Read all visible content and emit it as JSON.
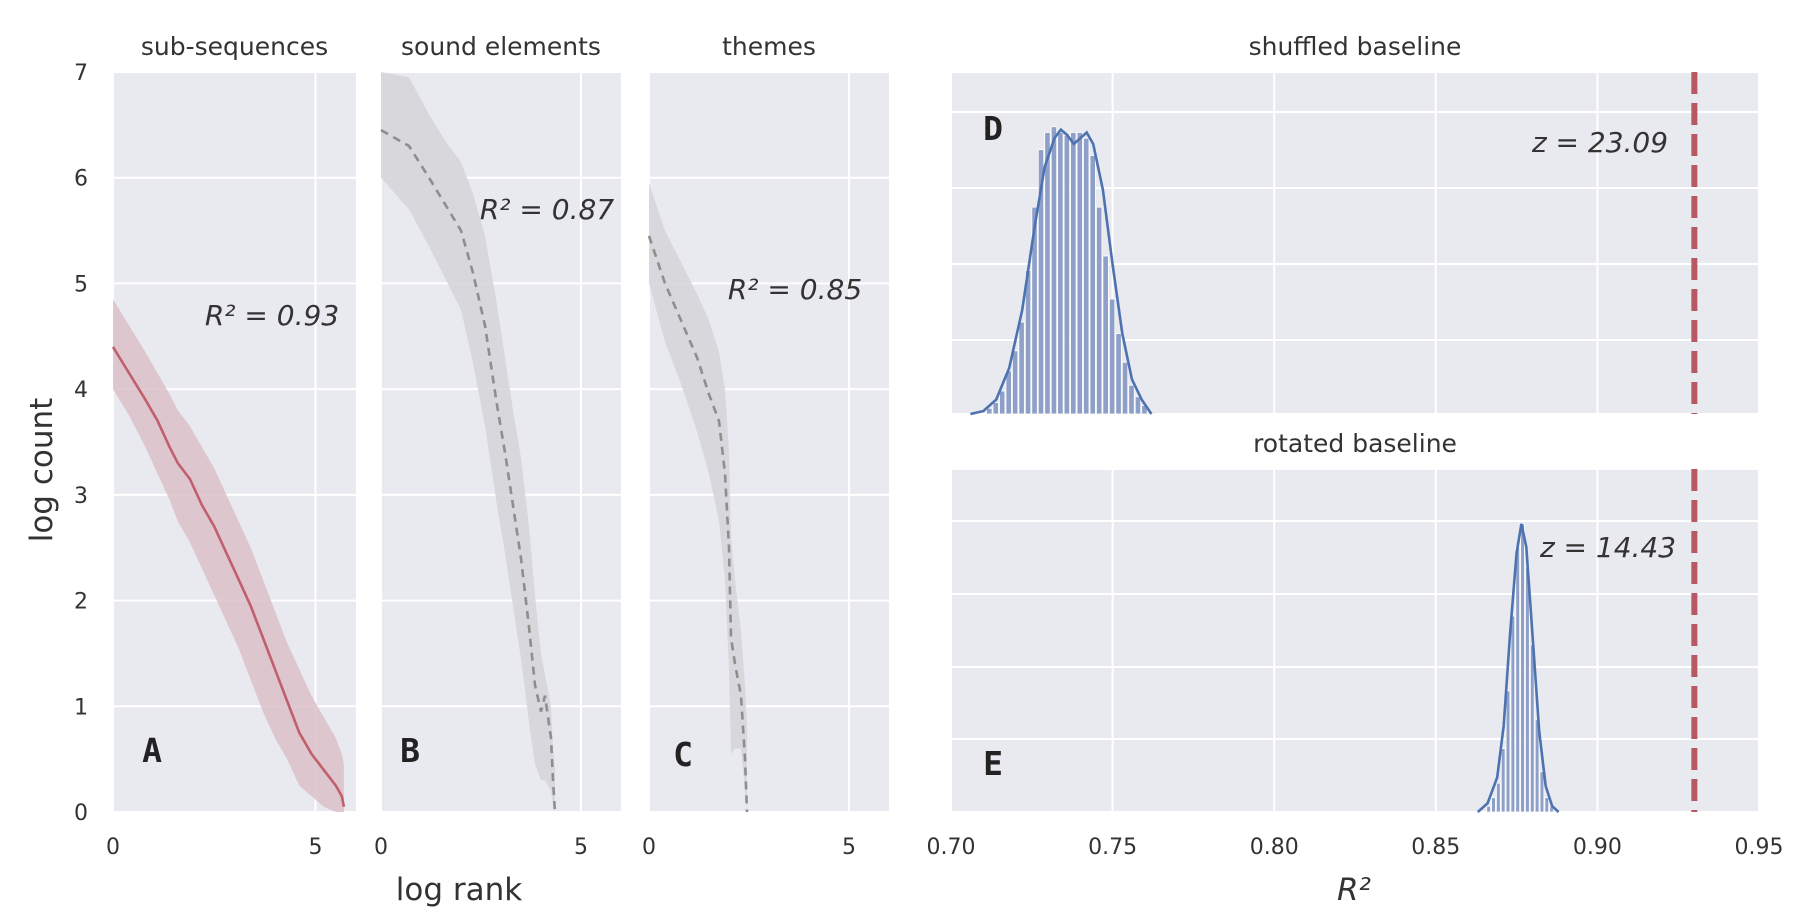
{
  "figure": {
    "ylabel": "log count",
    "xlabel_left": "log rank",
    "xlabel_right": "R²",
    "colors": {
      "background": "#e9e9f0",
      "grid": "#ffffff",
      "red": "#c0606c",
      "red_band": "#dcc0c8",
      "grey_line": "#8e8e8e",
      "grey_band": "#d3d3d8",
      "blue": "#4c72b0",
      "blue_bar": "#8fa0c8",
      "dashed_red": "#b85862"
    }
  },
  "chart_data": [
    {
      "id": "A",
      "type": "line",
      "title": "sub-sequences",
      "letter": "A",
      "annotation": "R² = 0.93",
      "r2": 0.93,
      "xlim": [
        0,
        6
      ],
      "ylim": [
        0,
        7
      ],
      "xticks": [
        "0",
        "5"
      ],
      "xtick_values": [
        0,
        5
      ],
      "yticks": [
        "0",
        "1",
        "2",
        "3",
        "4",
        "5",
        "6",
        "7"
      ],
      "x": [
        0,
        0.4,
        0.8,
        1.1,
        1.4,
        1.6,
        1.9,
        2.2,
        2.5,
        2.8,
        3.1,
        3.4,
        3.7,
        4.0,
        4.3,
        4.6,
        4.9,
        5.2,
        5.5,
        5.65,
        5.7
      ],
      "y": [
        4.4,
        4.15,
        3.9,
        3.7,
        3.45,
        3.3,
        3.15,
        2.9,
        2.7,
        2.45,
        2.2,
        1.95,
        1.65,
        1.35,
        1.05,
        0.75,
        0.55,
        0.4,
        0.25,
        0.15,
        0.05
      ],
      "band_lower": [
        4.0,
        3.75,
        3.45,
        3.2,
        2.95,
        2.75,
        2.55,
        2.3,
        2.05,
        1.8,
        1.55,
        1.25,
        0.95,
        0.7,
        0.5,
        0.25,
        0.15,
        0.05,
        0.0,
        0.0,
        0.0
      ],
      "band_upper": [
        4.85,
        4.6,
        4.35,
        4.15,
        3.95,
        3.8,
        3.65,
        3.45,
        3.25,
        3.0,
        2.75,
        2.5,
        2.2,
        1.9,
        1.6,
        1.35,
        1.1,
        0.9,
        0.7,
        0.55,
        0.45
      ],
      "style": "solid"
    },
    {
      "id": "B",
      "type": "line",
      "title": "sound elements",
      "letter": "B",
      "annotation": "R² = 0.87",
      "r2": 0.87,
      "xlim": [
        0,
        6
      ],
      "ylim": [
        0,
        7
      ],
      "xticks": [
        "0",
        "5"
      ],
      "xtick_values": [
        0,
        5
      ],
      "yticks": [
        "0",
        "1",
        "2",
        "3",
        "4",
        "5",
        "6",
        "7"
      ],
      "x": [
        0,
        0.7,
        1.2,
        1.6,
        2.0,
        2.3,
        2.6,
        2.9,
        3.1,
        3.3,
        3.5,
        3.7,
        3.85,
        4.0,
        4.1,
        4.25,
        4.3,
        4.35
      ],
      "y": [
        6.45,
        6.3,
        6.0,
        5.75,
        5.5,
        5.1,
        4.6,
        3.85,
        3.4,
        2.9,
        2.4,
        1.75,
        1.2,
        0.95,
        1.1,
        0.7,
        0.3,
        0.0
      ],
      "band_lower": [
        6.0,
        5.7,
        5.35,
        5.05,
        4.75,
        4.25,
        3.65,
        2.9,
        2.45,
        1.95,
        1.45,
        0.85,
        0.45,
        0.3,
        0.3,
        0.2,
        0.05,
        0.0
      ],
      "band_upper": [
        7.0,
        6.95,
        6.6,
        6.35,
        6.15,
        5.85,
        5.45,
        4.8,
        4.3,
        3.8,
        3.35,
        2.7,
        2.05,
        1.5,
        1.3,
        1.0,
        0.6,
        0.4
      ],
      "style": "dashed"
    },
    {
      "id": "C",
      "type": "line",
      "title": "themes",
      "letter": "C",
      "annotation": "R² = 0.85",
      "r2": 0.85,
      "xlim": [
        0,
        6
      ],
      "ylim": [
        0,
        7
      ],
      "xticks": [
        "0",
        "5"
      ],
      "xtick_values": [
        0,
        5
      ],
      "yticks": [
        "0",
        "1",
        "2",
        "3",
        "4",
        "5",
        "6",
        "7"
      ],
      "x": [
        0,
        0.4,
        0.8,
        1.2,
        1.5,
        1.75,
        1.9,
        2.0,
        2.05,
        2.15,
        2.3,
        2.4,
        2.45
      ],
      "y": [
        5.45,
        5.0,
        4.65,
        4.3,
        3.95,
        3.7,
        3.2,
        2.5,
        1.65,
        1.4,
        1.1,
        0.5,
        0.0
      ],
      "band_lower": [
        5.0,
        4.45,
        4.05,
        3.6,
        3.2,
        2.75,
        2.2,
        1.35,
        0.55,
        0.6,
        0.6,
        0.2,
        0.0
      ],
      "band_upper": [
        5.95,
        5.5,
        5.2,
        4.9,
        4.65,
        4.35,
        4.0,
        3.4,
        2.6,
        2.2,
        1.7,
        1.2,
        0.8
      ],
      "style": "dashed"
    },
    {
      "id": "D",
      "type": "histogram",
      "title": "shuffled baseline",
      "letter": "D",
      "annotation": "z = 23.09",
      "z": 23.09,
      "xlim": [
        0.7,
        0.95
      ],
      "xticks": [
        "0.70",
        "0.75",
        "0.80",
        "0.85",
        "0.90",
        "0.95"
      ],
      "xtick_values": [
        0.7,
        0.75,
        0.8,
        0.85,
        0.9,
        0.95
      ],
      "bins": [
        0.712,
        0.714,
        0.716,
        0.718,
        0.72,
        0.722,
        0.724,
        0.726,
        0.728,
        0.73,
        0.732,
        0.734,
        0.736,
        0.738,
        0.74,
        0.742,
        0.744,
        0.746,
        0.748,
        0.75,
        0.752,
        0.754,
        0.756,
        0.758,
        0.76
      ],
      "counts": [
        0.02,
        0.04,
        0.08,
        0.15,
        0.22,
        0.32,
        0.5,
        0.72,
        0.92,
        0.98,
        1.0,
        0.98,
        0.97,
        0.98,
        0.98,
        0.96,
        0.9,
        0.72,
        0.55,
        0.4,
        0.28,
        0.18,
        0.1,
        0.06,
        0.03
      ],
      "kde_x": [
        0.706,
        0.71,
        0.714,
        0.718,
        0.722,
        0.726,
        0.729,
        0.732,
        0.734,
        0.736,
        0.738,
        0.74,
        0.742,
        0.744,
        0.747,
        0.75,
        0.753,
        0.756,
        0.759,
        0.762
      ],
      "kde_y": [
        0.0,
        0.01,
        0.05,
        0.16,
        0.36,
        0.66,
        0.86,
        0.96,
        0.99,
        0.97,
        0.94,
        0.96,
        0.98,
        0.94,
        0.78,
        0.52,
        0.28,
        0.12,
        0.05,
        0.0
      ],
      "observed": 0.93
    },
    {
      "id": "E",
      "type": "histogram",
      "title": "rotated baseline",
      "letter": "E",
      "annotation": "z = 14.43",
      "z": 14.43,
      "xlim": [
        0.7,
        0.95
      ],
      "xticks": [
        "0.70",
        "0.75",
        "0.80",
        "0.85",
        "0.90",
        "0.95"
      ],
      "xtick_values": [
        0.7,
        0.75,
        0.8,
        0.85,
        0.9,
        0.95
      ],
      "bins": [
        0.8665,
        0.868,
        0.8695,
        0.871,
        0.8725,
        0.874,
        0.8755,
        0.877,
        0.8785,
        0.88,
        0.8815,
        0.883,
        0.8845,
        0.886
      ],
      "counts": [
        0.02,
        0.05,
        0.1,
        0.22,
        0.42,
        0.68,
        0.92,
        1.0,
        0.85,
        0.58,
        0.32,
        0.14,
        0.05,
        0.02
      ],
      "kde_x": [
        0.863,
        0.866,
        0.869,
        0.871,
        0.873,
        0.875,
        0.8765,
        0.878,
        0.88,
        0.882,
        0.884,
        0.886,
        0.888
      ],
      "kde_y": [
        0.0,
        0.03,
        0.12,
        0.3,
        0.62,
        0.9,
        1.0,
        0.92,
        0.6,
        0.28,
        0.09,
        0.02,
        0.0
      ],
      "observed": 0.93
    }
  ]
}
